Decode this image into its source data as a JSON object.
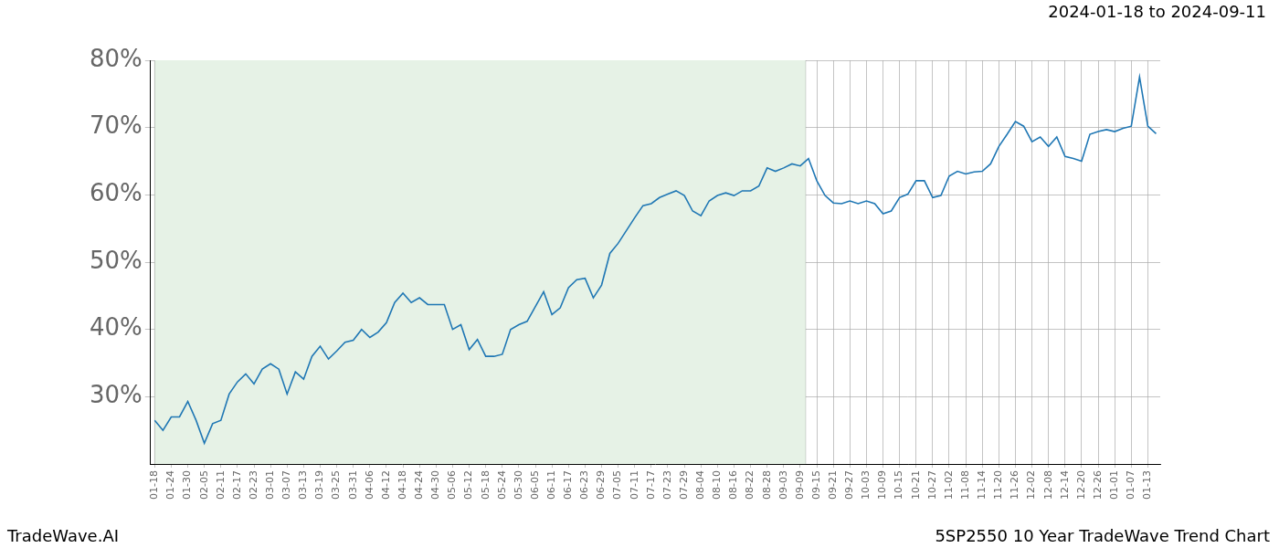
{
  "chart_data": {
    "type": "line",
    "title": "2024-01-18 to 2024-09-11",
    "annotations": [
      "TradeWave.AI",
      "5SP2550 10 Year TradeWave Trend Chart"
    ],
    "categories": [
      "01-18",
      null,
      "01-24",
      null,
      "01-30",
      null,
      "02-05",
      null,
      "02-11",
      null,
      "02-17",
      null,
      "02-23",
      null,
      "03-01",
      null,
      "03-07",
      null,
      "03-13",
      null,
      "03-19",
      null,
      "03-25",
      null,
      "03-31",
      null,
      "04-06",
      null,
      "04-12",
      null,
      "04-18",
      null,
      "04-24",
      null,
      "04-30",
      null,
      "05-06",
      null,
      "05-12",
      null,
      "05-18",
      null,
      "05-24",
      null,
      "05-30",
      null,
      "06-05",
      null,
      "06-11",
      null,
      "06-17",
      null,
      "06-23",
      null,
      "06-29",
      null,
      "07-05",
      null,
      "07-11",
      null,
      "07-17",
      null,
      "07-23",
      null,
      "07-29",
      null,
      "08-04",
      null,
      "08-10",
      null,
      "08-16",
      null,
      "08-22",
      null,
      "08-28",
      null,
      "09-03",
      null,
      "09-09",
      null,
      "09-15",
      null,
      "09-21",
      null,
      "09-27",
      null,
      "10-03",
      null,
      "10-09",
      null,
      "10-15",
      null,
      "10-21",
      null,
      "10-27",
      null,
      "11-02",
      null,
      "11-08",
      null,
      "11-14",
      null,
      "11-20",
      null,
      "11-26",
      null,
      "12-02",
      null,
      "12-08",
      null,
      "12-14",
      null,
      "12-20",
      null,
      "12-26",
      null,
      "01-01",
      null,
      "01-07",
      null,
      "01-13",
      null
    ],
    "values": [
      26.5,
      25,
      27,
      27,
      29.3,
      26.5,
      23.1,
      26,
      26.5,
      30.4,
      32.2,
      33.4,
      31.9,
      34.1,
      34.9,
      34.1,
      30.4,
      33.7,
      32.6,
      36,
      37.5,
      35.6,
      36.8,
      38.1,
      38.4,
      40,
      38.8,
      39.6,
      41,
      44,
      45.4,
      44,
      44.7,
      43.7,
      43.7,
      43.7,
      40,
      40.7,
      37,
      38.5,
      36,
      36,
      36.3,
      40,
      40.7,
      41.2,
      43.4,
      45.6,
      42.2,
      43.2,
      46.2,
      47.4,
      47.6,
      44.7,
      46.6,
      51.3,
      52.8,
      54.7,
      56.6,
      58.4,
      58.7,
      59.6,
      60.1,
      60.6,
      59.9,
      57.6,
      56.9,
      59.1,
      59.9,
      60.3,
      59.9,
      60.6,
      60.6,
      61.3,
      64,
      63.5,
      64,
      64.6,
      64.3,
      65.4,
      62.1,
      59.9,
      58.8,
      58.7,
      59.1,
      58.7,
      59.1,
      58.7,
      57.2,
      57.6,
      59.6,
      60.1,
      62.1,
      62.1,
      59.6,
      59.9,
      62.8,
      63.5,
      63.1,
      63.4,
      63.5,
      64.6,
      67.2,
      69,
      70.9,
      70.2,
      67.9,
      68.6,
      67.2,
      68.6,
      65.7,
      65.4,
      65,
      69,
      69.4,
      69.7,
      69.4,
      69.9,
      70.2,
      77.5,
      70.2,
      69.1
    ],
    "color": "#1f77b4",
    "highlight": {
      "from": "01-18",
      "to": "09-11",
      "color": "#e6f2e6"
    },
    "ylim": [
      20,
      80
    ],
    "yticks": [
      {
        "value": 30,
        "label": "30%"
      },
      {
        "value": 40,
        "label": "40%"
      },
      {
        "value": 50,
        "label": "50%"
      },
      {
        "value": 60,
        "label": "60%"
      },
      {
        "value": 70,
        "label": "70%"
      },
      {
        "value": 80,
        "label": "80%"
      }
    ],
    "grid": true,
    "line_style": "solid",
    "marker": "none"
  }
}
